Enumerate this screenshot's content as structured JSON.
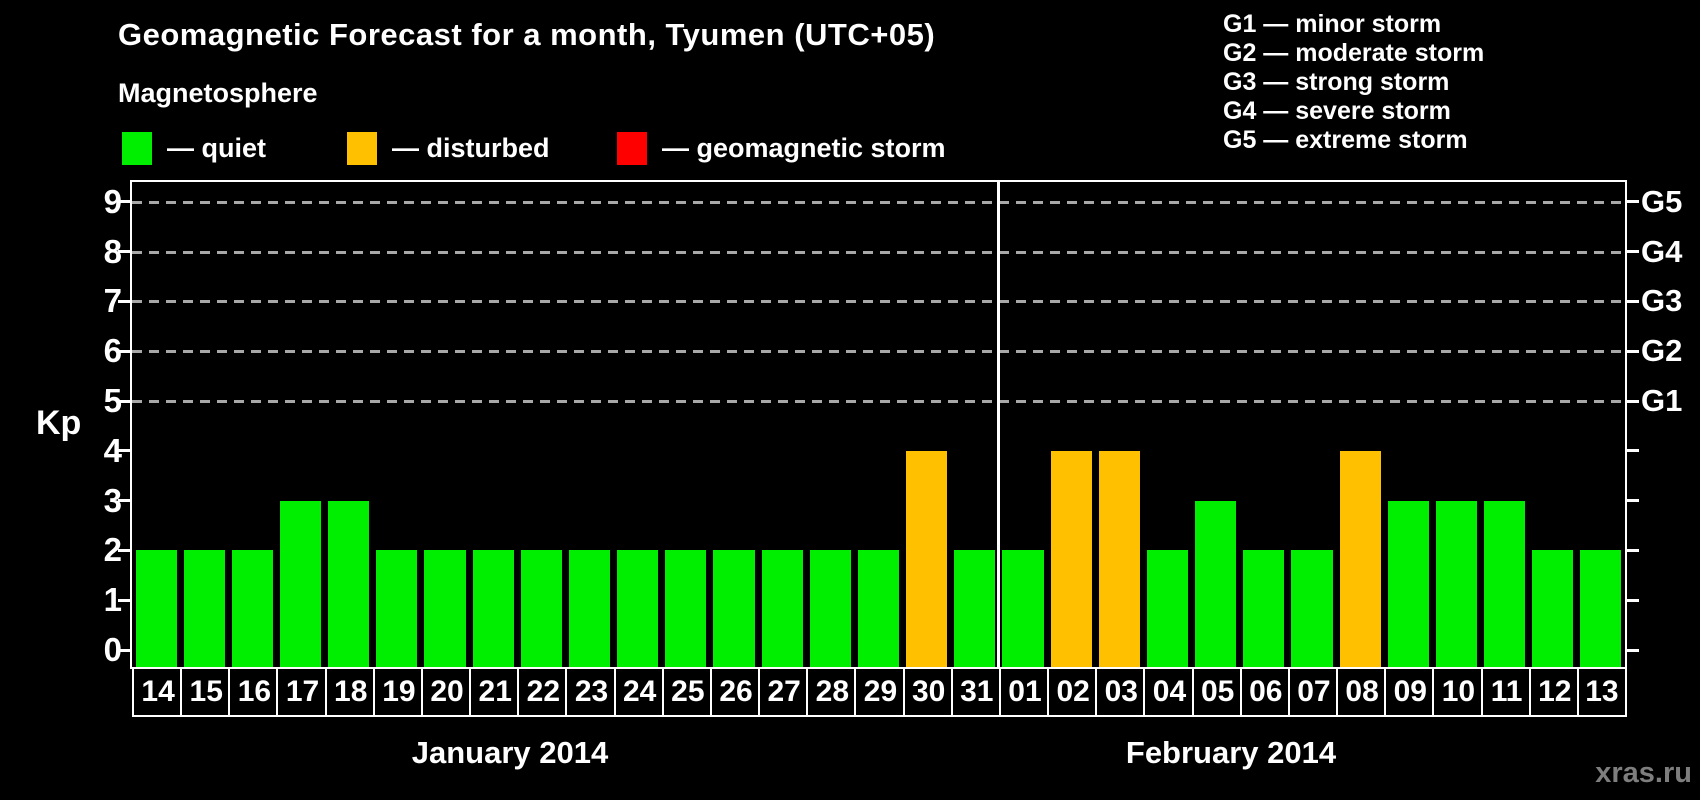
{
  "header": {
    "title": "Geomagnetic Forecast for a month, Tyumen (UTC+05)",
    "subtitle": "Magnetosphere"
  },
  "colors": {
    "quiet": "#00ee00",
    "disturbed": "#ffc000",
    "storm": "#ff0000",
    "gridline": "#a8a8a8",
    "watermark": "#7e7e7e"
  },
  "legend": {
    "items": [
      {
        "status": "quiet",
        "label": "— quiet"
      },
      {
        "status": "disturbed",
        "label": "— disturbed"
      },
      {
        "status": "storm",
        "label": "— geomagnetic storm"
      }
    ]
  },
  "g_legend": {
    "items": [
      "G1 — minor storm",
      "G2 — moderate storm",
      "G3 — strong storm",
      "G4 — severe storm",
      "G5 — extreme storm"
    ]
  },
  "axis": {
    "kp_label": "Kp",
    "y_ticks": [
      "0",
      "1",
      "2",
      "3",
      "4",
      "5",
      "6",
      "7",
      "8",
      "9"
    ],
    "g_labels": [
      {
        "level": 5,
        "code": "G1"
      },
      {
        "level": 6,
        "code": "G2"
      },
      {
        "level": 7,
        "code": "G3"
      },
      {
        "level": 8,
        "code": "G4"
      },
      {
        "level": 9,
        "code": "G5"
      }
    ]
  },
  "chart_data": {
    "type": "bar",
    "title": "Geomagnetic Forecast for a month, Tyumen (UTC+05)",
    "xlabel": "",
    "ylabel": "Kp",
    "ylim": [
      0,
      9
    ],
    "gridlines_at": [
      5,
      6,
      7,
      8,
      9
    ],
    "legend_position": "top-left",
    "days": [
      {
        "day": "14",
        "month": "January 2014",
        "value": 2,
        "status": "quiet"
      },
      {
        "day": "15",
        "month": "January 2014",
        "value": 2,
        "status": "quiet"
      },
      {
        "day": "16",
        "month": "January 2014",
        "value": 2,
        "status": "quiet"
      },
      {
        "day": "17",
        "month": "January 2014",
        "value": 3,
        "status": "quiet"
      },
      {
        "day": "18",
        "month": "January 2014",
        "value": 3,
        "status": "quiet"
      },
      {
        "day": "19",
        "month": "January 2014",
        "value": 2,
        "status": "quiet"
      },
      {
        "day": "20",
        "month": "January 2014",
        "value": 2,
        "status": "quiet"
      },
      {
        "day": "21",
        "month": "January 2014",
        "value": 2,
        "status": "quiet"
      },
      {
        "day": "22",
        "month": "January 2014",
        "value": 2,
        "status": "quiet"
      },
      {
        "day": "23",
        "month": "January 2014",
        "value": 2,
        "status": "quiet"
      },
      {
        "day": "24",
        "month": "January 2014",
        "value": 2,
        "status": "quiet"
      },
      {
        "day": "25",
        "month": "January 2014",
        "value": 2,
        "status": "quiet"
      },
      {
        "day": "26",
        "month": "January 2014",
        "value": 2,
        "status": "quiet"
      },
      {
        "day": "27",
        "month": "January 2014",
        "value": 2,
        "status": "quiet"
      },
      {
        "day": "28",
        "month": "January 2014",
        "value": 2,
        "status": "quiet"
      },
      {
        "day": "29",
        "month": "January 2014",
        "value": 2,
        "status": "quiet"
      },
      {
        "day": "30",
        "month": "January 2014",
        "value": 4,
        "status": "disturbed"
      },
      {
        "day": "31",
        "month": "January 2014",
        "value": 2,
        "status": "quiet"
      },
      {
        "day": "01",
        "month": "February 2014",
        "value": 2,
        "status": "quiet"
      },
      {
        "day": "02",
        "month": "February 2014",
        "value": 4,
        "status": "disturbed"
      },
      {
        "day": "03",
        "month": "February 2014",
        "value": 4,
        "status": "disturbed"
      },
      {
        "day": "04",
        "month": "February 2014",
        "value": 2,
        "status": "quiet"
      },
      {
        "day": "05",
        "month": "February 2014",
        "value": 3,
        "status": "quiet"
      },
      {
        "day": "06",
        "month": "February 2014",
        "value": 2,
        "status": "quiet"
      },
      {
        "day": "07",
        "month": "February 2014",
        "value": 2,
        "status": "quiet"
      },
      {
        "day": "08",
        "month": "February 2014",
        "value": 4,
        "status": "disturbed"
      },
      {
        "day": "09",
        "month": "February 2014",
        "value": 3,
        "status": "quiet"
      },
      {
        "day": "10",
        "month": "February 2014",
        "value": 3,
        "status": "quiet"
      },
      {
        "day": "11",
        "month": "February 2014",
        "value": 3,
        "status": "quiet"
      },
      {
        "day": "12",
        "month": "February 2014",
        "value": 2,
        "status": "quiet"
      },
      {
        "day": "13",
        "month": "February 2014",
        "value": 2,
        "status": "quiet"
      }
    ]
  },
  "months": [
    {
      "label": "January 2014"
    },
    {
      "label": "February 2014"
    }
  ],
  "watermark": {
    "text": "xras.ru"
  }
}
